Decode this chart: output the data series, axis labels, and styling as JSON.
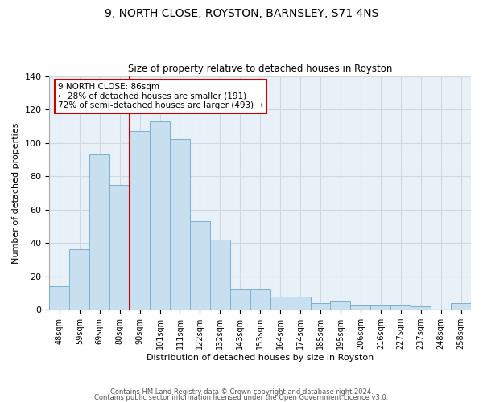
{
  "title": "9, NORTH CLOSE, ROYSTON, BARNSLEY, S71 4NS",
  "subtitle": "Size of property relative to detached houses in Royston",
  "xlabel": "Distribution of detached houses by size in Royston",
  "ylabel": "Number of detached properties",
  "bar_labels": [
    "48sqm",
    "59sqm",
    "69sqm",
    "80sqm",
    "90sqm",
    "101sqm",
    "111sqm",
    "122sqm",
    "132sqm",
    "143sqm",
    "153sqm",
    "164sqm",
    "174sqm",
    "185sqm",
    "195sqm",
    "206sqm",
    "216sqm",
    "227sqm",
    "237sqm",
    "248sqm",
    "258sqm"
  ],
  "bar_values": [
    14,
    36,
    93,
    75,
    107,
    113,
    102,
    53,
    42,
    12,
    12,
    8,
    8,
    4,
    5,
    3,
    3,
    3,
    2,
    0,
    4
  ],
  "bar_color": "#c8dff0",
  "bar_edge_color": "#7bafd4",
  "vline_color": "#cc0000",
  "vline_x_index": 4,
  "ylim": [
    0,
    140
  ],
  "yticks": [
    0,
    20,
    40,
    60,
    80,
    100,
    120,
    140
  ],
  "annotation_title": "9 NORTH CLOSE: 86sqm",
  "annotation_line1": "← 28% of detached houses are smaller (191)",
  "annotation_line2": "72% of semi-detached houses are larger (493) →",
  "annotation_box_color": "#ffffff",
  "annotation_box_edge": "#cc0000",
  "footer_line1": "Contains HM Land Registry data © Crown copyright and database right 2024.",
  "footer_line2": "Contains public sector information licensed under the Open Government Licence v3.0.",
  "grid_color": "#d0d8e0",
  "bg_color": "#e8f0f8"
}
